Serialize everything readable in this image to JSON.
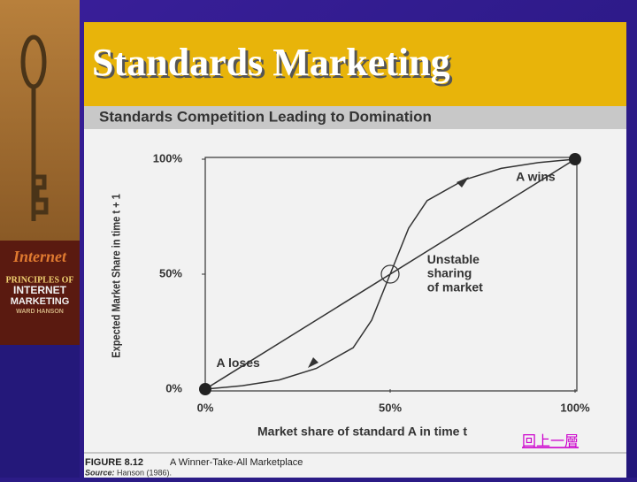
{
  "slide": {
    "title": "Standards Marketing",
    "link": "回上一層",
    "book": {
      "top": "Internet",
      "line1": "PRINCIPLES OF",
      "line2": "INTERNET",
      "line3": "MARKETING",
      "author": "WARD HANSON"
    }
  },
  "figure": {
    "header": "Standards Competition Leading to Domination",
    "caption_label": "FIGURE 8.12",
    "caption": "A Winner-Take-All Marketplace",
    "source_label": "Source:",
    "source": "Hanson (1986)."
  },
  "chart_data": {
    "type": "line",
    "xlabel": "Market share of standard A in time t",
    "ylabel": "Expected Market Share in time t + 1",
    "xlim": [
      0,
      100
    ],
    "ylim": [
      0,
      100
    ],
    "xticks": [
      {
        "value": 0,
        "label": "0%"
      },
      {
        "value": 50,
        "label": "50%"
      },
      {
        "value": 100,
        "label": "100%"
      }
    ],
    "yticks": [
      {
        "value": 0,
        "label": "0%"
      },
      {
        "value": 50,
        "label": "50%"
      },
      {
        "value": 100,
        "label": "100%"
      }
    ],
    "color": "#333333",
    "series": [
      {
        "x": [
          0,
          10,
          20,
          30,
          40,
          45,
          50,
          55,
          60,
          70,
          80,
          90,
          100
        ],
        "values": [
          0,
          1.5,
          4,
          9,
          18,
          30,
          50,
          70,
          82,
          91,
          96,
          98.5,
          100
        ]
      },
      {
        "x": [
          0,
          100
        ],
        "values": [
          0,
          100
        ]
      }
    ],
    "annotations": [
      {
        "text": "A wins",
        "x": 84,
        "y": 92
      },
      {
        "text": "Unstable",
        "x": 60,
        "y": 56
      },
      {
        "text": "sharing",
        "x": 60,
        "y": 50
      },
      {
        "text": "of market",
        "x": 60,
        "y": 44
      },
      {
        "text": "A loses",
        "x": 3,
        "y": 11
      }
    ]
  }
}
